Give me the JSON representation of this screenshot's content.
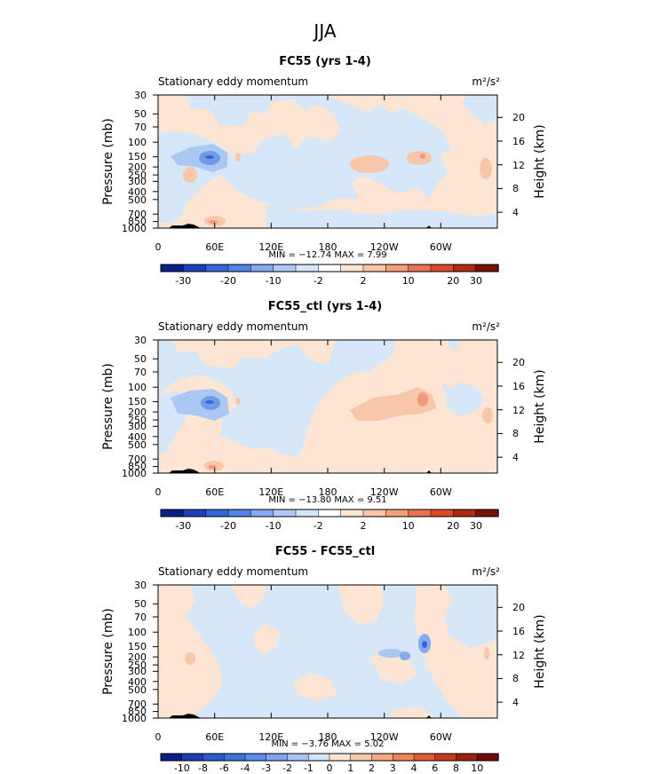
{
  "figure_title": "JJA",
  "colors": {
    "pos1": "#fde5d3",
    "pos2": "#f8c6a8",
    "pos3": "#f09a79",
    "neg1": "#d6e7fa",
    "neg2": "#aac8f2",
    "neg3": "#6f9be6",
    "land": "#000000"
  },
  "chart_data": [
    {
      "type": "heatmap",
      "title": "FC55 (yrs 1-4)",
      "subtitle_left": "Stationary eddy momentum",
      "units": "m²/s²",
      "ylabel": "Pressure (mb)",
      "ylabel_right": "Height (km)",
      "pressure_ticks": [
        "30",
        "50",
        "70",
        "100",
        "150",
        "200",
        "250",
        "300",
        "400",
        "500",
        "700",
        "850",
        "1000"
      ],
      "height_ticks": [
        "20",
        "16",
        "12",
        "8",
        "4"
      ],
      "longitude_ticks": [
        "0",
        "60E",
        "120E",
        "180",
        "120W",
        "60W"
      ],
      "min": "-12.74",
      "max": "7.99",
      "minmax_text": "MIN = −12.74   MAX =   7.99",
      "colorbar_levels": [
        "-30",
        "-20",
        "-10",
        "-2",
        "2",
        "10",
        "20",
        "30"
      ]
    },
    {
      "type": "heatmap",
      "title": "FC55_ctl (yrs 1-4)",
      "subtitle_left": "Stationary eddy momentum",
      "units": "m²/s²",
      "ylabel": "Pressure (mb)",
      "ylabel_right": "Height (km)",
      "pressure_ticks": [
        "30",
        "50",
        "70",
        "100",
        "150",
        "200",
        "250",
        "300",
        "400",
        "500",
        "700",
        "850",
        "1000"
      ],
      "height_ticks": [
        "20",
        "16",
        "12",
        "8",
        "4"
      ],
      "longitude_ticks": [
        "0",
        "60E",
        "120E",
        "180",
        "120W",
        "60W"
      ],
      "min": "-13.80",
      "max": "9.51",
      "minmax_text": "MIN = −13.80   MAX =   9.51",
      "colorbar_levels": [
        "-30",
        "-20",
        "-10",
        "-2",
        "2",
        "10",
        "20",
        "30"
      ]
    },
    {
      "type": "heatmap",
      "title": "FC55 - FC55_ctl",
      "subtitle_left": "Stationary eddy momentum",
      "units": "m²/s²",
      "ylabel": "Pressure (mb)",
      "ylabel_right": "Height (km)",
      "pressure_ticks": [
        "30",
        "50",
        "70",
        "100",
        "150",
        "200",
        "250",
        "300",
        "400",
        "500",
        "700",
        "850",
        "1000"
      ],
      "height_ticks": [
        "20",
        "16",
        "12",
        "8",
        "4"
      ],
      "longitude_ticks": [
        "0",
        "60E",
        "120E",
        "180",
        "120W",
        "60W"
      ],
      "min": "-3.76",
      "max": "5.02",
      "minmax_text": "MIN = −3.76   MAX =   5.02",
      "colorbar_levels": [
        "-10",
        "-8",
        "-6",
        "-4",
        "-3",
        "-2",
        "-1",
        "0",
        "1",
        "2",
        "3",
        "4",
        "6",
        "8",
        "10"
      ]
    }
  ],
  "colorbar_colors": {
    "cb_abs": [
      "#0a1e8c",
      "#1f3fbf",
      "#3466dc",
      "#5283ea",
      "#86aaf0",
      "#aec9f5",
      "#d5e6fa",
      "#ffffff",
      "#fde5d3",
      "#f8c6a8",
      "#f4a079",
      "#ec7150",
      "#db4a29",
      "#ae2a12",
      "#7a1208"
    ],
    "cb_diff": [
      "#0a1e8c",
      "#1a3cb4",
      "#2c58d0",
      "#3f73e0",
      "#5a8cea",
      "#7ea6f0",
      "#a8c4f5",
      "#d2e4fa",
      "#fde5d3",
      "#f8c8aa",
      "#f4a880",
      "#ee8458",
      "#e05e36",
      "#c43a1c",
      "#9a2010",
      "#6e0e06"
    ]
  }
}
